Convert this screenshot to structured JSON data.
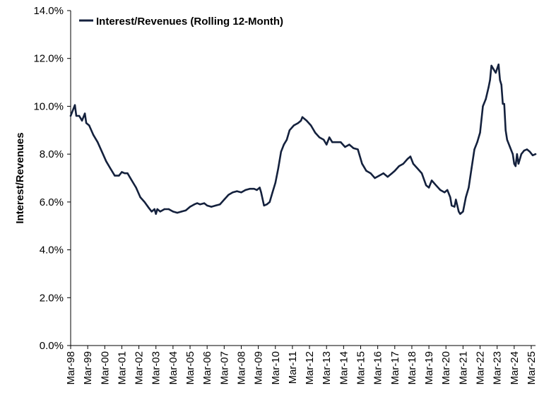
{
  "chart_data": {
    "type": "line",
    "title": "",
    "xlabel": "",
    "ylabel": "Interest/Revenues",
    "ylim": [
      0.0,
      14.0
    ],
    "y_ticks": [
      "0.0%",
      "2.0%",
      "4.0%",
      "6.0%",
      "8.0%",
      "10.0%",
      "12.0%",
      "14.0%"
    ],
    "y_tick_values": [
      0,
      2,
      4,
      6,
      8,
      10,
      12,
      14
    ],
    "x_ticks": [
      "Mar-98",
      "Mar-99",
      "Mar-00",
      "Mar-01",
      "Mar-02",
      "Mar-03",
      "Mar-04",
      "Mar-05",
      "Mar-06",
      "Mar-07",
      "Mar-08",
      "Mar-09",
      "Mar-10",
      "Mar-11",
      "Mar-12",
      "Mar-13",
      "Mar-14",
      "Mar-15",
      "Mar-16",
      "Mar-17",
      "Mar-18",
      "Mar-19",
      "Mar-20",
      "Mar-21",
      "Mar-22",
      "Mar-23",
      "Mar-24",
      "Mar-25"
    ],
    "xlim": [
      "1998-03",
      "2025-06"
    ],
    "grid": false,
    "legend": "top-left",
    "line_color": "#14213d",
    "series": [
      {
        "name": "Interest/Revenues (Rolling 12-Month)",
        "points": [
          [
            "1998-03",
            9.6
          ],
          [
            "1998-05",
            9.9
          ],
          [
            "1998-06",
            10.05
          ],
          [
            "1998-07",
            9.6
          ],
          [
            "1998-09",
            9.6
          ],
          [
            "1998-11",
            9.4
          ],
          [
            "1999-01",
            9.7
          ],
          [
            "1999-02",
            9.3
          ],
          [
            "1999-04",
            9.2
          ],
          [
            "1999-07",
            8.8
          ],
          [
            "1999-10",
            8.5
          ],
          [
            "2000-01",
            8.1
          ],
          [
            "2000-04",
            7.7
          ],
          [
            "2000-07",
            7.4
          ],
          [
            "2000-10",
            7.1
          ],
          [
            "2001-01",
            7.1
          ],
          [
            "2001-03",
            7.25
          ],
          [
            "2001-05",
            7.2
          ],
          [
            "2001-07",
            7.2
          ],
          [
            "2001-10",
            6.9
          ],
          [
            "2002-01",
            6.6
          ],
          [
            "2002-04",
            6.2
          ],
          [
            "2002-07",
            6.0
          ],
          [
            "2002-10",
            5.75
          ],
          [
            "2002-12",
            5.6
          ],
          [
            "2003-02",
            5.7
          ],
          [
            "2003-03",
            5.5
          ],
          [
            "2003-04",
            5.7
          ],
          [
            "2003-06",
            5.6
          ],
          [
            "2003-09",
            5.7
          ],
          [
            "2003-12",
            5.7
          ],
          [
            "2004-03",
            5.6
          ],
          [
            "2004-06",
            5.55
          ],
          [
            "2004-09",
            5.6
          ],
          [
            "2004-12",
            5.65
          ],
          [
            "2005-03",
            5.8
          ],
          [
            "2005-06",
            5.9
          ],
          [
            "2005-08",
            5.95
          ],
          [
            "2005-10",
            5.9
          ],
          [
            "2006-01",
            5.95
          ],
          [
            "2006-03",
            5.85
          ],
          [
            "2006-06",
            5.8
          ],
          [
            "2006-09",
            5.85
          ],
          [
            "2006-12",
            5.9
          ],
          [
            "2007-03",
            6.1
          ],
          [
            "2007-06",
            6.3
          ],
          [
            "2007-09",
            6.4
          ],
          [
            "2007-12",
            6.45
          ],
          [
            "2008-03",
            6.4
          ],
          [
            "2008-06",
            6.5
          ],
          [
            "2008-09",
            6.55
          ],
          [
            "2008-12",
            6.55
          ],
          [
            "2009-02",
            6.5
          ],
          [
            "2009-04",
            6.6
          ],
          [
            "2009-05",
            6.4
          ],
          [
            "2009-07",
            5.85
          ],
          [
            "2009-09",
            5.9
          ],
          [
            "2009-11",
            6.0
          ],
          [
            "2010-01",
            6.4
          ],
          [
            "2010-03",
            6.8
          ],
          [
            "2010-05",
            7.4
          ],
          [
            "2010-07",
            8.1
          ],
          [
            "2010-09",
            8.4
          ],
          [
            "2010-11",
            8.6
          ],
          [
            "2011-01",
            9.0
          ],
          [
            "2011-04",
            9.2
          ],
          [
            "2011-07",
            9.3
          ],
          [
            "2011-09",
            9.4
          ],
          [
            "2011-10",
            9.55
          ],
          [
            "2012-01",
            9.4
          ],
          [
            "2012-04",
            9.2
          ],
          [
            "2012-07",
            8.9
          ],
          [
            "2012-10",
            8.7
          ],
          [
            "2013-01",
            8.6
          ],
          [
            "2013-03",
            8.4
          ],
          [
            "2013-05",
            8.7
          ],
          [
            "2013-07",
            8.5
          ],
          [
            "2013-10",
            8.5
          ],
          [
            "2014-01",
            8.5
          ],
          [
            "2014-04",
            8.3
          ],
          [
            "2014-07",
            8.4
          ],
          [
            "2014-10",
            8.25
          ],
          [
            "2015-01",
            8.2
          ],
          [
            "2015-04",
            7.6
          ],
          [
            "2015-07",
            7.3
          ],
          [
            "2015-10",
            7.2
          ],
          [
            "2016-01",
            7.0
          ],
          [
            "2016-04",
            7.1
          ],
          [
            "2016-07",
            7.2
          ],
          [
            "2016-10",
            7.05
          ],
          [
            "2017-01",
            7.2
          ],
          [
            "2017-03",
            7.3
          ],
          [
            "2017-06",
            7.5
          ],
          [
            "2017-09",
            7.6
          ],
          [
            "2017-12",
            7.8
          ],
          [
            "2018-02",
            7.9
          ],
          [
            "2018-04",
            7.6
          ],
          [
            "2018-07",
            7.4
          ],
          [
            "2018-10",
            7.2
          ],
          [
            "2019-01",
            6.7
          ],
          [
            "2019-03",
            6.6
          ],
          [
            "2019-05",
            6.9
          ],
          [
            "2019-08",
            6.7
          ],
          [
            "2019-11",
            6.5
          ],
          [
            "2020-02",
            6.4
          ],
          [
            "2020-04",
            6.5
          ],
          [
            "2020-06",
            6.2
          ],
          [
            "2020-07",
            5.85
          ],
          [
            "2020-09",
            5.8
          ],
          [
            "2020-10",
            6.1
          ],
          [
            "2020-12",
            5.6
          ],
          [
            "2021-01",
            5.5
          ],
          [
            "2021-03",
            5.6
          ],
          [
            "2021-05",
            6.2
          ],
          [
            "2021-07",
            6.6
          ],
          [
            "2021-09",
            7.4
          ],
          [
            "2021-11",
            8.2
          ],
          [
            "2022-01",
            8.5
          ],
          [
            "2022-03",
            8.9
          ],
          [
            "2022-05",
            10.0
          ],
          [
            "2022-07",
            10.3
          ],
          [
            "2022-09",
            10.8
          ],
          [
            "2022-10",
            11.1
          ],
          [
            "2022-11",
            11.7
          ],
          [
            "2023-01",
            11.5
          ],
          [
            "2023-02",
            11.4
          ],
          [
            "2023-04",
            11.75
          ],
          [
            "2023-05",
            11.1
          ],
          [
            "2023-06",
            10.9
          ],
          [
            "2023-07",
            10.1
          ],
          [
            "2023-08",
            10.1
          ],
          [
            "2023-09",
            9.0
          ],
          [
            "2023-10",
            8.6
          ],
          [
            "2023-12",
            8.3
          ],
          [
            "2024-02",
            8.0
          ],
          [
            "2024-03",
            7.6
          ],
          [
            "2024-04",
            7.5
          ],
          [
            "2024-05",
            8.0
          ],
          [
            "2024-06",
            7.6
          ],
          [
            "2024-08",
            8.0
          ],
          [
            "2024-10",
            8.15
          ],
          [
            "2024-12",
            8.2
          ],
          [
            "2025-02",
            8.1
          ],
          [
            "2025-04",
            7.95
          ],
          [
            "2025-06",
            8.0
          ]
        ]
      }
    ]
  }
}
